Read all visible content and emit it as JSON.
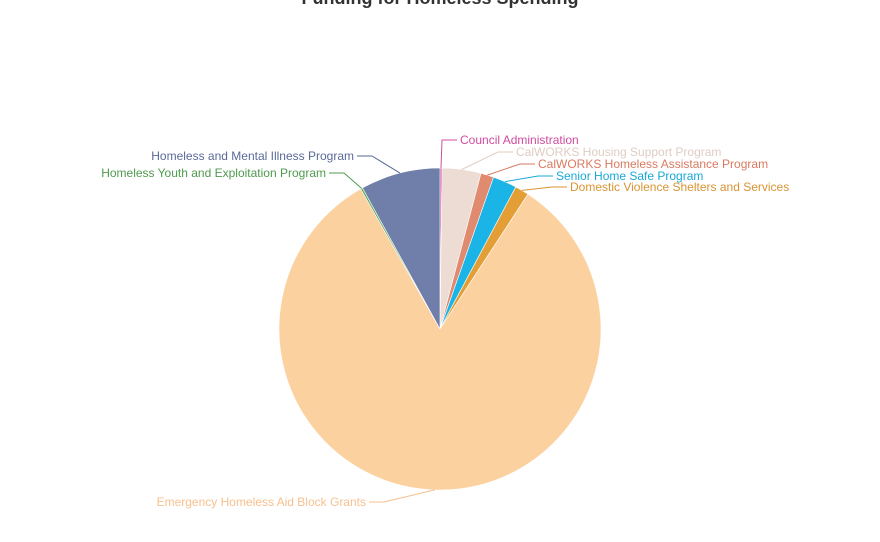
{
  "chart_data": {
    "type": "pie",
    "title": "Funding for Homeless Spending",
    "start_angle_deg": 0,
    "slices": [
      {
        "name": "Council Administration",
        "value": 0.2,
        "color": "#d04ca0"
      },
      {
        "name": "CalWORKS Housing Support Program",
        "value": 3.9,
        "color": "#ecdcd4"
      },
      {
        "name": "CalWORKS Homeless Assistance Program",
        "value": 1.3,
        "color": "#e08a70"
      },
      {
        "name": "Senior Home Safe Program",
        "value": 2.4,
        "color": "#1ab4e6"
      },
      {
        "name": "Domestic Violence Shelters and Services",
        "value": 1.4,
        "color": "#e49e36"
      },
      {
        "name": "Emergency Homeless Aid Block Grants",
        "value": 82.6,
        "color": "#fcd1a0"
      },
      {
        "name": "Homeless Youth and Exploitation Program",
        "value": 0.2,
        "color": "#5cac5c"
      },
      {
        "name": "Homeless and Mental Illness Program",
        "value": 8.0,
        "color": "#6f7fa9"
      }
    ]
  }
}
